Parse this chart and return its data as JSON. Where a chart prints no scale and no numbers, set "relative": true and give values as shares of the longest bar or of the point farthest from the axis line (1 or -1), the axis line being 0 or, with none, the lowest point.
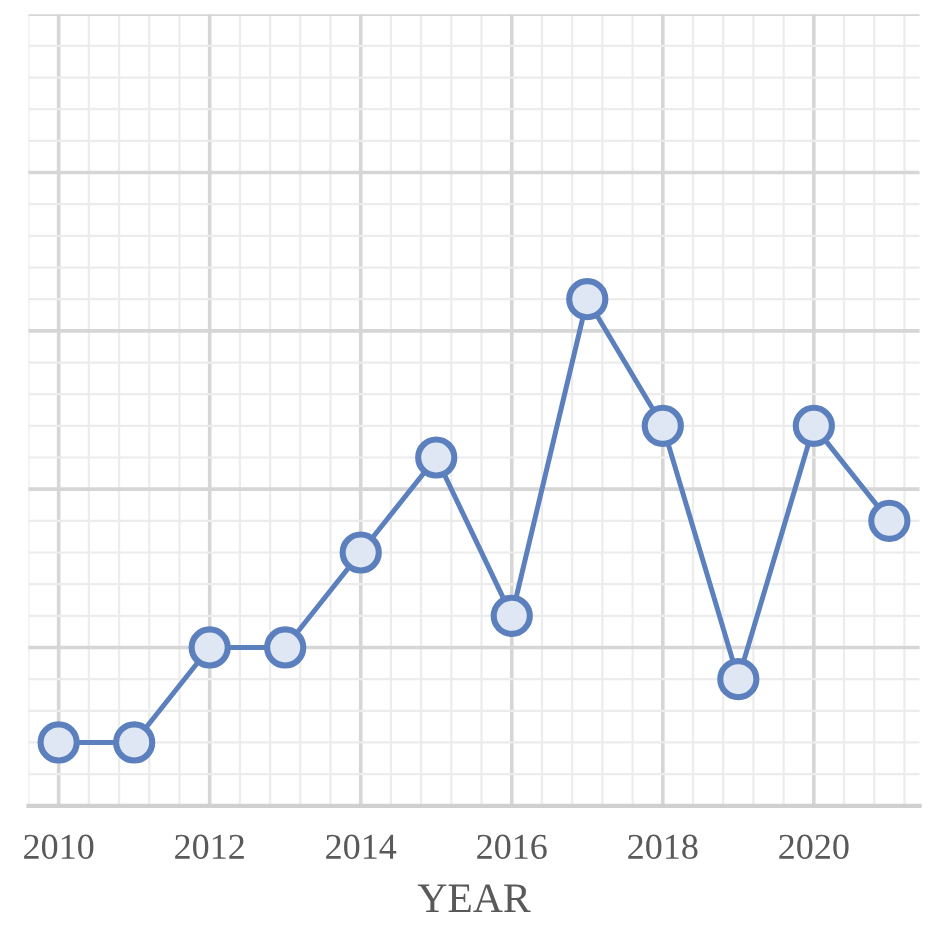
{
  "chart_data": {
    "type": "line",
    "xlabel": "YEAR",
    "relative": true,
    "x": [
      2010,
      2011,
      2012,
      2013,
      2014,
      2015,
      2016,
      2017,
      2018,
      2019,
      2020,
      2021
    ],
    "series": [
      {
        "color": "#5b80bd",
        "values": [
          0.125,
          0.125,
          0.3125,
          0.3125,
          0.5,
          0.6875,
          0.375,
          1,
          0.75,
          0.25,
          0.75,
          0.5625
        ]
      }
    ],
    "xlim": [
      2009.6,
      2021.4
    ],
    "xticks": [
      2010,
      2012,
      2014,
      2016,
      2018,
      2020
    ],
    "grid": true,
    "marker": "circle",
    "line_style": "solid",
    "tick_labels": "x",
    "legend": false
  }
}
